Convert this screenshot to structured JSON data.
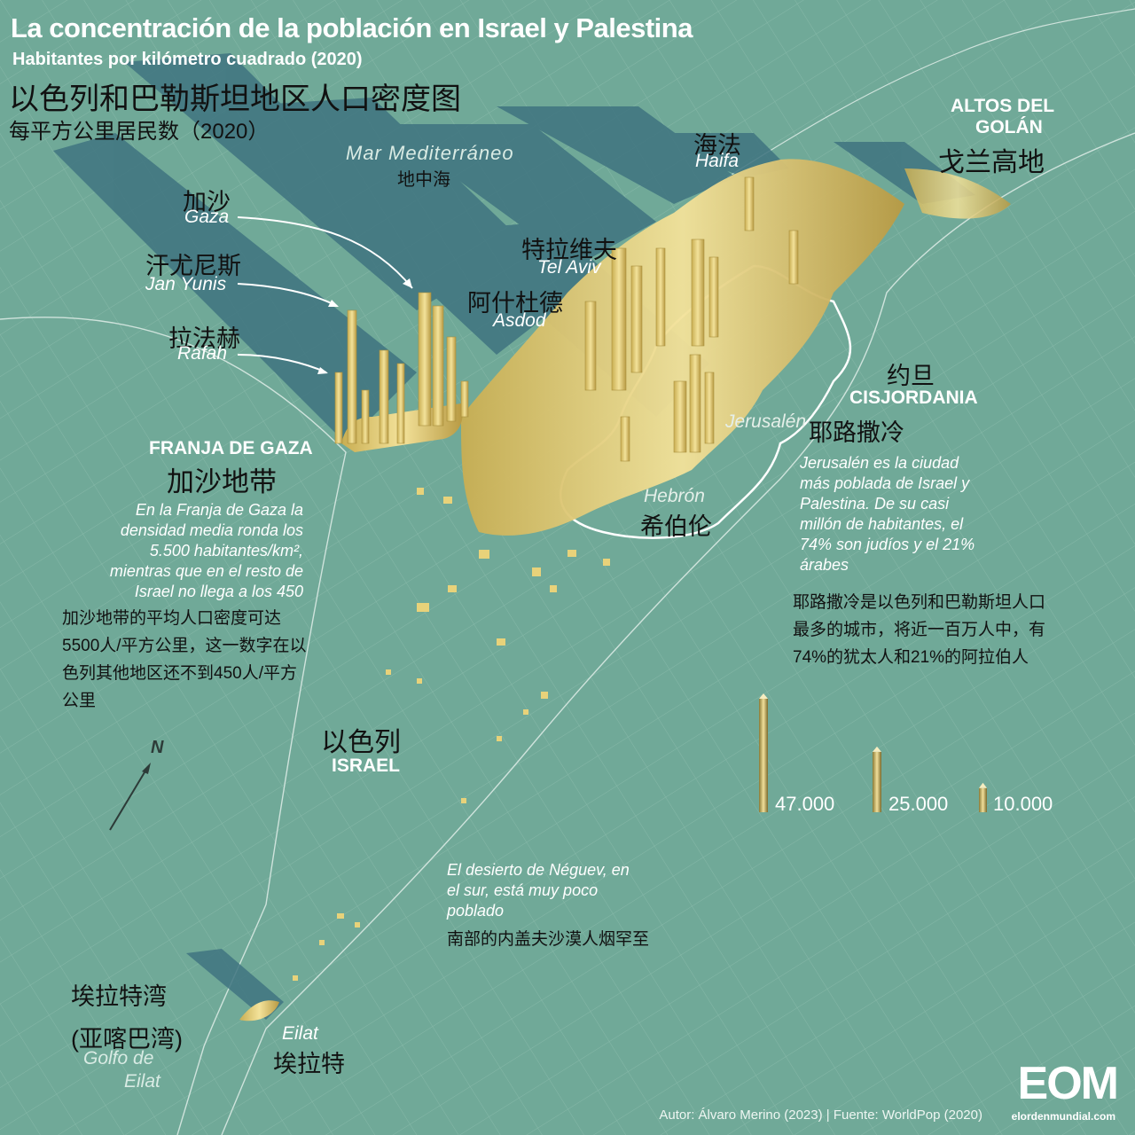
{
  "header": {
    "title": "La concentración de la población en Israel y Palestina",
    "subtitle": "Habitantes por kilómetro cuadrado (2020)",
    "title_cn": "以色列和巴勒斯坦地区人口密度图",
    "subtitle_cn": "每平方公里居民数（2020）"
  },
  "sea": {
    "es": "Mar Mediterráneo",
    "cn": "地中海"
  },
  "cities": {
    "haifa": {
      "cn": "海法",
      "es": "Haifa"
    },
    "gaza": {
      "cn": "加沙",
      "es": "Gaza"
    },
    "jan_yunis": {
      "cn": "汗尤尼斯",
      "es": "Jan Yunis"
    },
    "rafah": {
      "cn": "拉法赫",
      "es": "Rafah"
    },
    "tel_aviv": {
      "cn": "特拉维夫",
      "es": "Tel Aviv"
    },
    "asdod": {
      "cn": "阿什杜德",
      "es": "Asdod"
    },
    "jerusalen": {
      "cn": "耶路撒冷",
      "es": "Jerusalén"
    },
    "hebron": {
      "cn": "希伯伦",
      "es": "Hebrón"
    },
    "eilat": {
      "cn": "埃拉特",
      "es": "Eilat"
    }
  },
  "regions": {
    "golan": {
      "es_1": "ALTOS DEL",
      "es_2": "GOLÁN",
      "cn": "戈兰高地"
    },
    "cisjordania": {
      "cn_jordan": "约旦",
      "es": "CISJORDANIA"
    },
    "gaza_strip": {
      "es": "FRANJA DE GAZA",
      "cn": "加沙地带"
    },
    "israel": {
      "cn": "以色列",
      "es": "ISRAEL"
    },
    "gulf": {
      "cn_1": "埃拉特湾",
      "cn_2": "(亚喀巴湾)",
      "es_1": "Golfo de",
      "es_2": "Eilat"
    }
  },
  "notes": {
    "gaza_es": "En la Franja de Gaza la densidad media ronda los 5.500 habitantes/km², mientras que en el resto de Israel no llega a los 450",
    "gaza_cn": "加沙地带的平均人口密度可达5500人/平方公里，这一数字在以色列其他地区还不到450人/平方公里",
    "jerusalem_es": "Jerusalén es la ciudad más poblada de Israel y Palestina. De su casi millón de habitantes, el 74% son judíos y el 21% árabes",
    "jerusalem_cn": "耶路撒冷是以色列和巴勒斯坦人口最多的城市，将近一百万人中，有74%的犹太人和21%的阿拉伯人",
    "negev_es": "El desierto de Néguev, en el sur, está muy poco poblado",
    "negev_cn": "南部的内盖夫沙漠人烟罕至"
  },
  "legend": {
    "items": [
      {
        "label": "47.000",
        "value": 47000
      },
      {
        "label": "25.000",
        "value": 25000
      },
      {
        "label": "10.000",
        "value": 10000
      }
    ]
  },
  "compass": {
    "label": "N"
  },
  "footer": {
    "credit": "Autor: Álvaro Merino (2023) | Fuente: WorldPop (2020)",
    "logo": "EOM",
    "logo_sub": "elordenmundial.com"
  },
  "colors": {
    "background": "#70a998",
    "grid": "#8fbfb0",
    "spikes": "#e8d27a",
    "shadow": "#3f7480",
    "border": "#ffffff"
  }
}
